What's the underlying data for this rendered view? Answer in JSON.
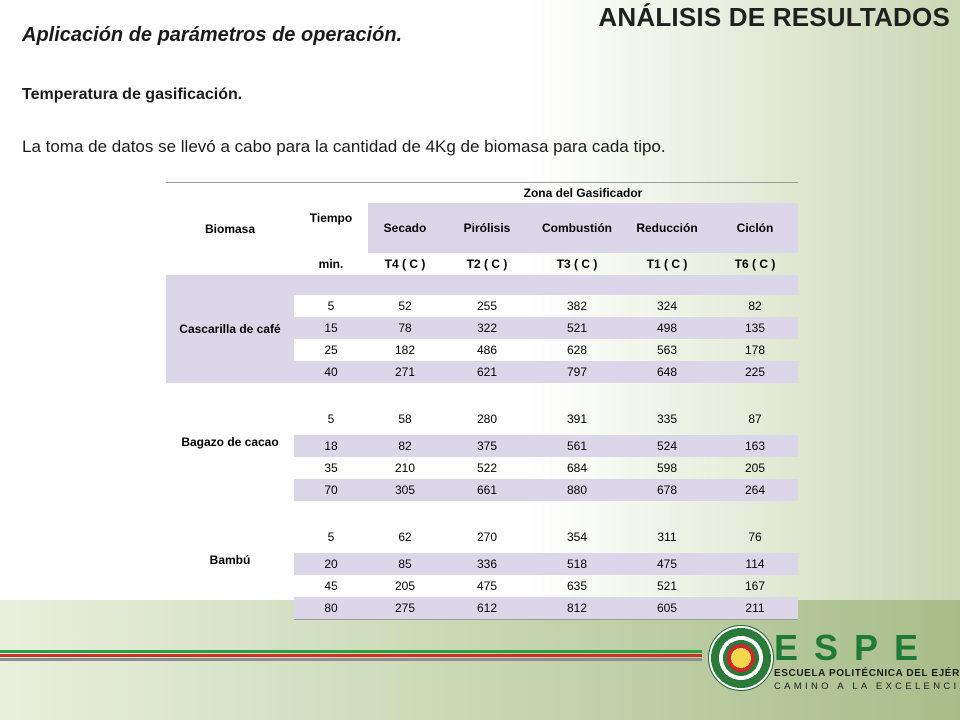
{
  "header": {
    "title": "ANÁLISIS DE RESULTADOS"
  },
  "subtitle": "Aplicación de parámetros de operación.",
  "section_label": "Temperatura de gasificación.",
  "intro": "La toma de datos se llevó a cabo para la cantidad de 4Kg de biomasa para cada tipo.",
  "table": {
    "col_biomasa": "Biomasa",
    "col_tiempo": "Tiempo",
    "zone_header": "Zona del Gasificador",
    "zones": [
      "Secado",
      "Pirólisis",
      "Combustión",
      "Reducción",
      "Ciclón"
    ],
    "unit_time": "min.",
    "units": [
      "T4 ( C )",
      "T2 ( C )",
      "T3 ( C )",
      "T1 ( C )",
      "T6 ( C )"
    ],
    "groups": [
      {
        "name": "Cascarilla de café",
        "rows": [
          [
            "5",
            "52",
            "255",
            "382",
            "324",
            "82"
          ],
          [
            "15",
            "78",
            "322",
            "521",
            "498",
            "135"
          ],
          [
            "25",
            "182",
            "486",
            "628",
            "563",
            "178"
          ],
          [
            "40",
            "271",
            "621",
            "797",
            "648",
            "225"
          ]
        ]
      },
      {
        "name": "Bagazo de cacao",
        "rows": [
          [
            "5",
            "58",
            "280",
            "391",
            "335",
            "87"
          ],
          [
            "18",
            "82",
            "375",
            "561",
            "524",
            "163"
          ],
          [
            "35",
            "210",
            "522",
            "684",
            "598",
            "205"
          ],
          [
            "70",
            "305",
            "661",
            "880",
            "678",
            "264"
          ]
        ]
      },
      {
        "name": "Bambú",
        "rows": [
          [
            "5",
            "62",
            "270",
            "354",
            "311",
            "76"
          ],
          [
            "20",
            "85",
            "336",
            "518",
            "475",
            "114"
          ],
          [
            "45",
            "205",
            "475",
            "635",
            "521",
            "167"
          ],
          [
            "80",
            "275",
            "612",
            "812",
            "605",
            "211"
          ]
        ]
      }
    ]
  },
  "logo": {
    "letters": "ESPE",
    "line1": "ESCUELA POLITÉCNICA DEL EJÉRCITO",
    "line2": "CAMINO A LA EXCELENCIA"
  }
}
